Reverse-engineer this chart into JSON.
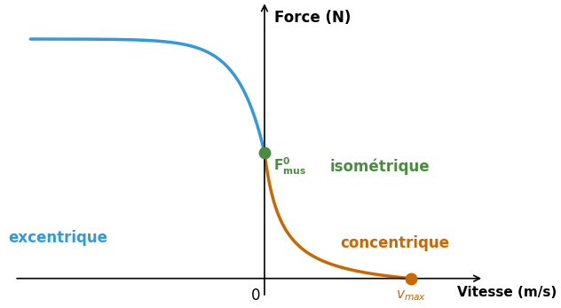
{
  "xlabel": "Vitesse (m/s)",
  "ylabel": "Force (N)",
  "bg_color": "#ffffff",
  "blue_color": "#3399dd",
  "orange_color": "#cc6600",
  "green_color": "#4a8c3f",
  "label_excentrique": "excentrique",
  "label_concentrique": "concentrique",
  "label_isometrique": "isométrique",
  "label_0": "0",
  "x_min": -1.8,
  "x_max": 1.5,
  "y_min": -0.2,
  "y_max": 2.2,
  "vmax": 1.0,
  "F0": 1.0,
  "a_hill": 0.12,
  "b_hill": 0.12,
  "vmax_ecc": 1.6,
  "F_max_ecc": 1.9
}
